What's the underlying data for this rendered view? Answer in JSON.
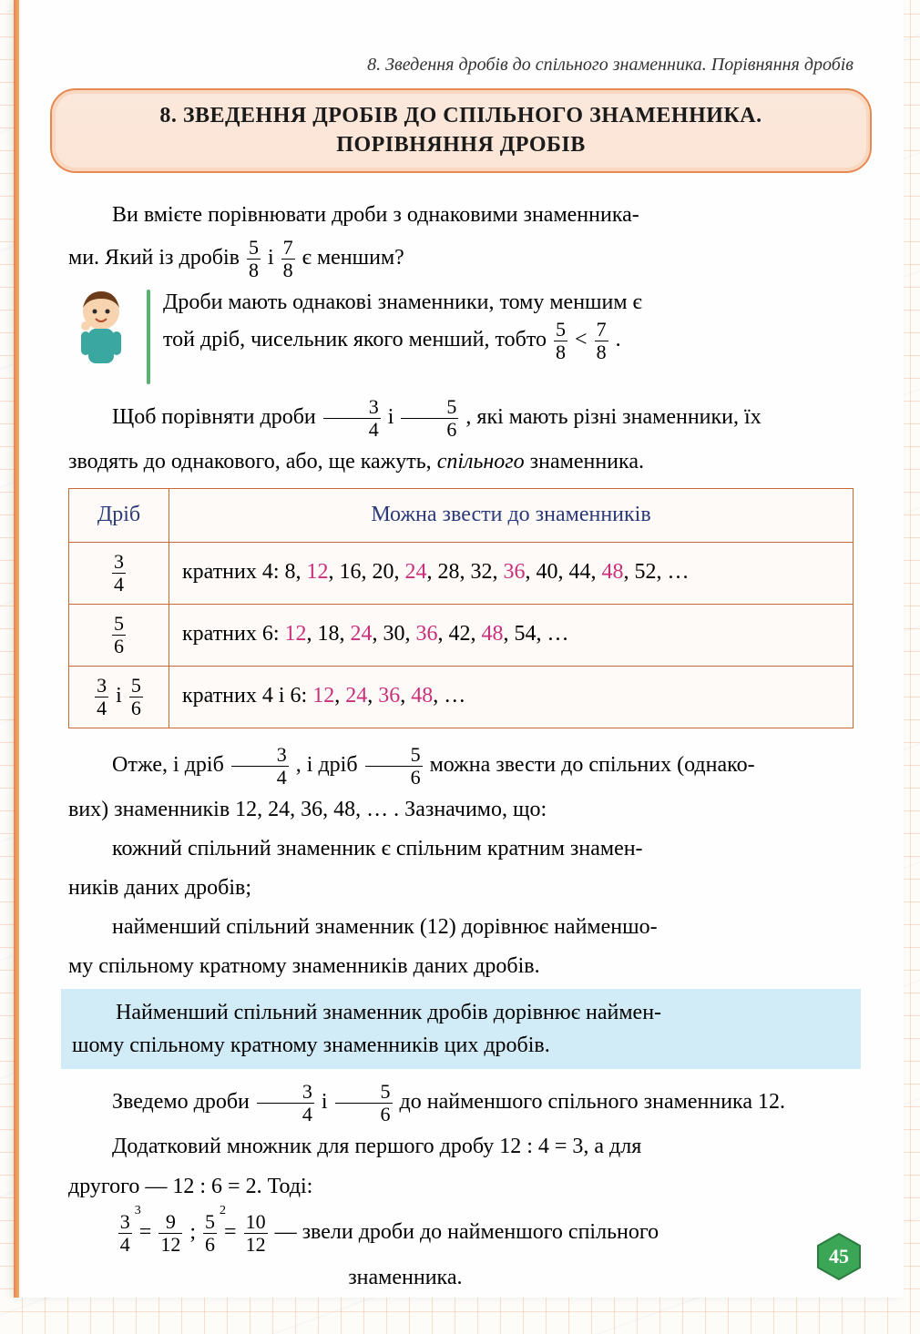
{
  "running_head": "8. Зведення дробів до спільного знаменника. Порівняння дробів",
  "title_l1": "8. ЗВЕДЕННЯ ДРОБІВ ДО СПІЛЬНОГО ЗНАМЕННИКА.",
  "title_l2": "ПОРІВНЯННЯ ДРОБІВ",
  "intro_a": "Ви вмієте порівнювати дроби з однаковими знаменника-",
  "intro_b_pre": "ми. Який із дробів ",
  "intro_b_mid": " і ",
  "intro_b_post": " є меншим?",
  "f58_n": "5",
  "f58_d": "8",
  "f78_n": "7",
  "f78_d": "8",
  "boy_l1": "Дроби мають однакові знаменники, тому меншим є",
  "boy_l2_pre": "той дріб, чисельник якого менший, тобто ",
  "boy_l2_mid": " < ",
  "boy_l2_post": ".",
  "para2_pre": "Щоб порівняти дроби ",
  "para2_mid": " і ",
  "para2_post": ", які мають різні знаменники, їх",
  "f34_n": "3",
  "f34_d": "4",
  "f56_n": "5",
  "f56_d": "6",
  "para2_l2": "зводять до однакового, або, ще кажуть, спільного знаменника.",
  "table": {
    "head_left": "Дріб",
    "head_right": "Можна звести до знаменників",
    "rows": [
      {
        "frac": [
          {
            "n": "3",
            "d": "4"
          }
        ],
        "sep": "",
        "prefix": "кратних 4:   ",
        "seq": [
          {
            "t": "8",
            "hl": false
          },
          {
            "t": ", ",
            "hl": false
          },
          {
            "t": "12",
            "hl": true
          },
          {
            "t": ", ",
            "hl": false
          },
          {
            "t": "16",
            "hl": false
          },
          {
            "t": ", ",
            "hl": false
          },
          {
            "t": "20",
            "hl": false
          },
          {
            "t": ", ",
            "hl": false
          },
          {
            "t": "24",
            "hl": true
          },
          {
            "t": ", ",
            "hl": false
          },
          {
            "t": "28",
            "hl": false
          },
          {
            "t": ", ",
            "hl": false
          },
          {
            "t": "32",
            "hl": false
          },
          {
            "t": ", ",
            "hl": false
          },
          {
            "t": "36",
            "hl": true
          },
          {
            "t": ", ",
            "hl": false
          },
          {
            "t": "40",
            "hl": false
          },
          {
            "t": ", ",
            "hl": false
          },
          {
            "t": "44",
            "hl": false
          },
          {
            "t": ", ",
            "hl": false
          },
          {
            "t": "48",
            "hl": true
          },
          {
            "t": ", ",
            "hl": false
          },
          {
            "t": "52",
            "hl": false
          },
          {
            "t": ", …",
            "hl": false
          }
        ]
      },
      {
        "frac": [
          {
            "n": "5",
            "d": "6"
          }
        ],
        "sep": "",
        "prefix": "кратних 6:   ",
        "seq": [
          {
            "t": "12",
            "hl": true
          },
          {
            "t": ", ",
            "hl": false
          },
          {
            "t": "18",
            "hl": false
          },
          {
            "t": ", ",
            "hl": false
          },
          {
            "t": "24",
            "hl": true
          },
          {
            "t": ", ",
            "hl": false
          },
          {
            "t": "30",
            "hl": false
          },
          {
            "t": ", ",
            "hl": false
          },
          {
            "t": "36",
            "hl": true
          },
          {
            "t": ", ",
            "hl": false
          },
          {
            "t": "42",
            "hl": false
          },
          {
            "t": ", ",
            "hl": false
          },
          {
            "t": "48",
            "hl": true
          },
          {
            "t": ", ",
            "hl": false
          },
          {
            "t": "54",
            "hl": false
          },
          {
            "t": ", …",
            "hl": false
          }
        ]
      },
      {
        "frac": [
          {
            "n": "3",
            "d": "4"
          },
          {
            "n": "5",
            "d": "6"
          }
        ],
        "sep": " і ",
        "prefix": "кратних 4 і 6:   ",
        "seq": [
          {
            "t": "12",
            "hl": true
          },
          {
            "t": ", ",
            "hl": false
          },
          {
            "t": "24",
            "hl": true
          },
          {
            "t": ", ",
            "hl": false
          },
          {
            "t": "36",
            "hl": true
          },
          {
            "t": ", ",
            "hl": false
          },
          {
            "t": "48",
            "hl": true
          },
          {
            "t": ", …",
            "hl": false
          }
        ]
      }
    ]
  },
  "after_tab_pre": "Отже, і дріб ",
  "after_tab_mid1": ", і дріб ",
  "after_tab_post": " можна звести до спільних (однако-",
  "after_tab_l2": "вих) знаменників 12, 24, 36, 48, … . Зазначимо, що:",
  "bullet1_l1": "кожний спільний знаменник є спільним кратним знамен-",
  "bullet1_l2": "ників даних дробів;",
  "bullet2_l1": "найменший спільний знаменник (12) дорівнює найменшо-",
  "bullet2_l2": "му спільному кратному знаменників даних дробів.",
  "rule_l1": "Найменший спільний знаменник дробів дорівнює наймен-",
  "rule_l2": "шому спільному кратному знаменників цих дробів.",
  "reduce_pre": "Зведемо дроби ",
  "reduce_mid": " і ",
  "reduce_post": " до найменшого спільного знаменника 12.",
  "extra_l1": "Додатковий множник для першого дробу 12 : 4 = 3, а для",
  "extra_l2": "другого — 12 : 6 = 2. Тоді:",
  "eq": {
    "f1": {
      "n": "3",
      "d": "4",
      "sup": "3"
    },
    "eq1": " = ",
    "f2": {
      "n": "9",
      "d": "12"
    },
    "sep": "; ",
    "f3": {
      "n": "5",
      "d": "6",
      "sup": "2"
    },
    "eq2": " = ",
    "f4": {
      "n": "10",
      "d": "12"
    },
    "tail1": " — звели дроби до найменшого спільного",
    "tail2": "знаменника."
  },
  "page_number": "45",
  "colors": {
    "accent_orange": "#e38a53",
    "hl_magenta": "#c92f7a",
    "rule_bg": "#d2ecf7",
    "table_border": "#c96a35",
    "header_blue": "#2a3a7a",
    "pagenum_fill": "#3aa656"
  }
}
